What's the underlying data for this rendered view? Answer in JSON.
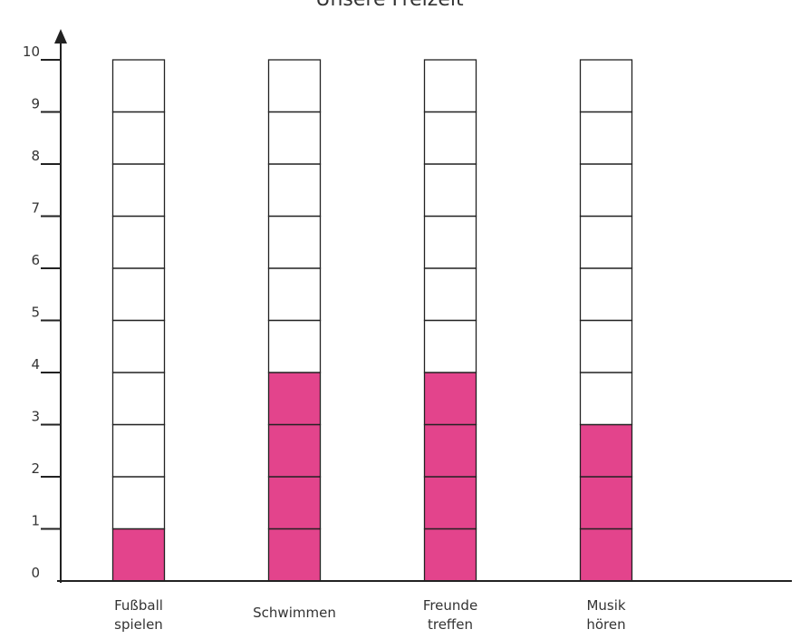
{
  "chart_data": {
    "type": "bar",
    "title": "Unsere Freizeit",
    "categories": [
      [
        "Fußball",
        "spielen"
      ],
      [
        "Schwimmen"
      ],
      [
        "Freunde",
        "treffen"
      ],
      [
        "Musik",
        "hören"
      ]
    ],
    "values": [
      1,
      4,
      4,
      3
    ],
    "ylim": [
      0,
      10
    ],
    "yticks": [
      "0",
      "1",
      "2",
      "3",
      "4",
      "5",
      "6",
      "7",
      "8",
      "9",
      "10"
    ],
    "bar_fill_color": "#e0307f",
    "grid": false
  }
}
